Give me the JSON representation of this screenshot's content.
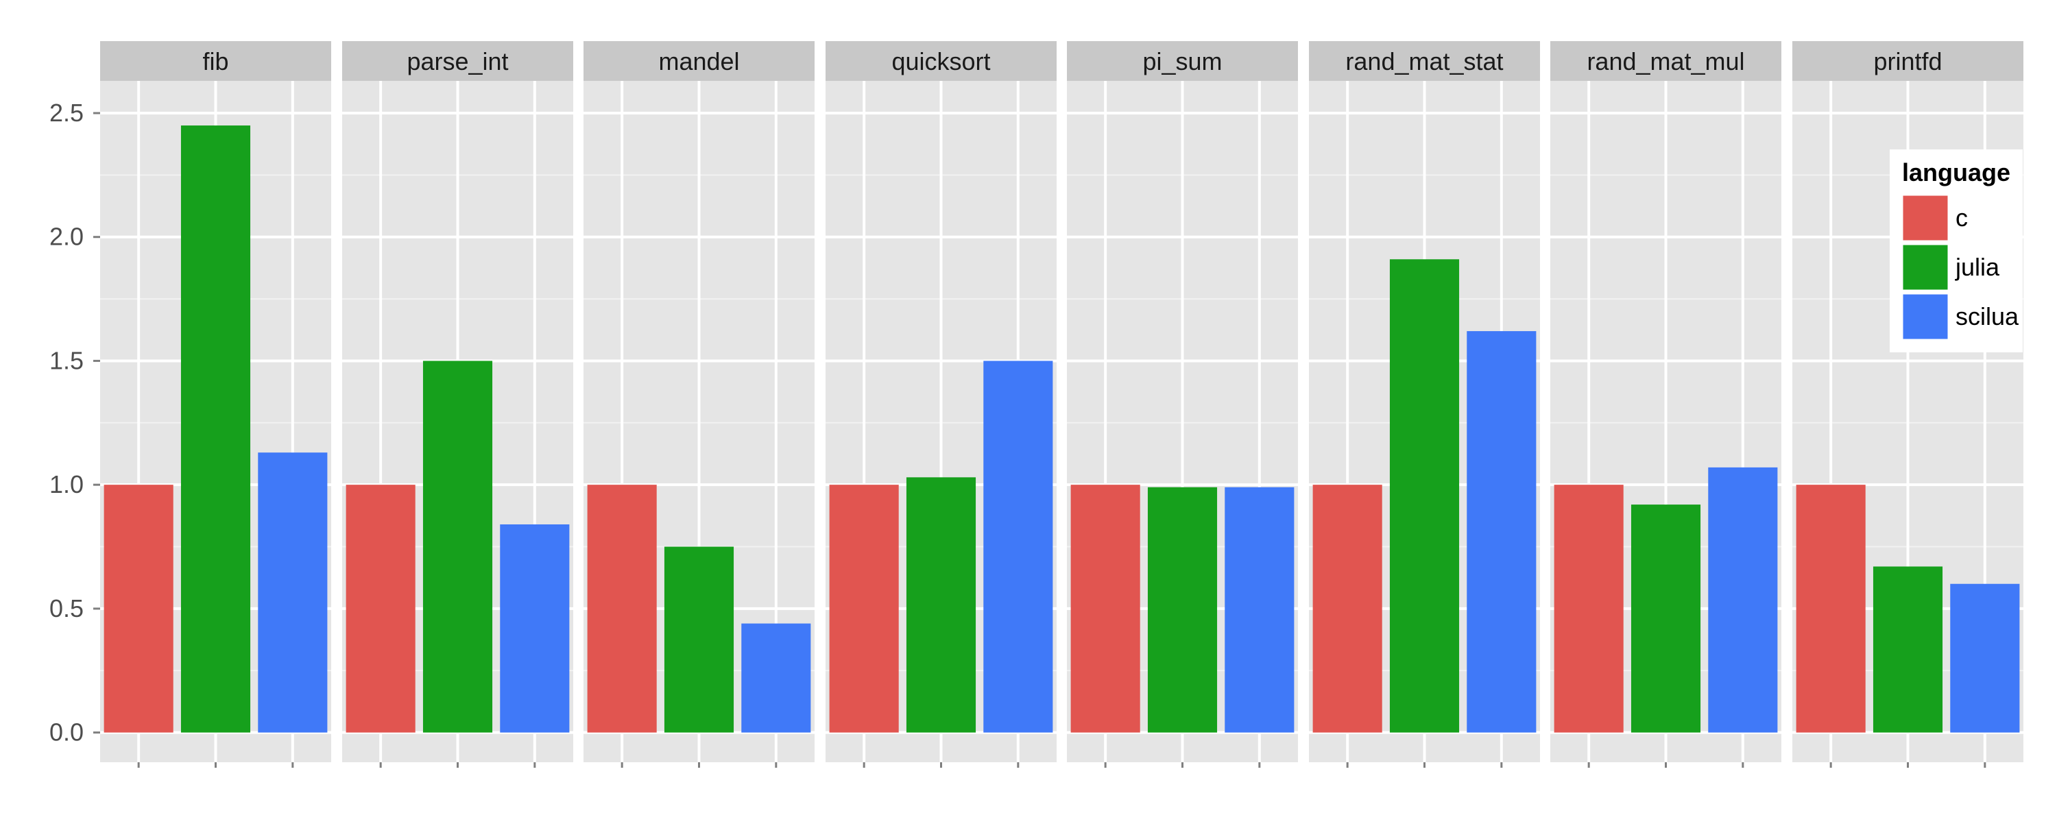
{
  "chart_data": {
    "type": "bar",
    "facets": [
      "fib",
      "parse_int",
      "mandel",
      "quicksort",
      "pi_sum",
      "rand_mat_stat",
      "rand_mat_mul",
      "printfd"
    ],
    "series": [
      {
        "name": "c",
        "values": [
          1.0,
          1.0,
          1.0,
          1.0,
          1.0,
          1.0,
          1.0,
          1.0
        ]
      },
      {
        "name": "julia",
        "values": [
          2.45,
          1.5,
          0.75,
          1.03,
          0.99,
          1.91,
          0.92,
          0.67
        ]
      },
      {
        "name": "scilua",
        "values": [
          1.13,
          0.84,
          0.44,
          1.5,
          0.99,
          1.62,
          1.07,
          0.6
        ]
      }
    ],
    "colors": {
      "c": "#E15550",
      "julia": "#16A01C",
      "scilua": "#4079F8"
    },
    "ylim": [
      -0.12,
      2.63
    ],
    "y_ticks": [
      "0.0",
      "0.5",
      "1.0",
      "1.5",
      "2.0",
      "2.5"
    ],
    "legend": {
      "title": "language",
      "placement": "right"
    },
    "grid": true,
    "xlabel": "",
    "ylabel": "",
    "title": ""
  }
}
